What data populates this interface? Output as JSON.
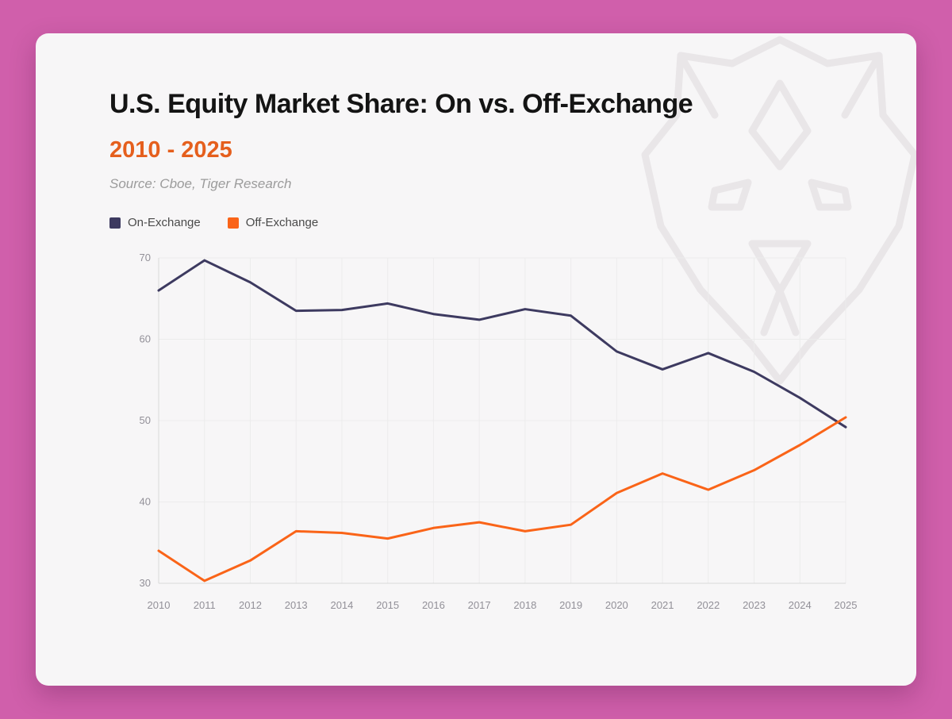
{
  "card": {
    "title": "U.S. Equity Market Share: On vs. Off-Exchange",
    "subtitle": "2010 - 2025",
    "source": "Source: Cboe, Tiger Research"
  },
  "colors": {
    "page_background": "#d05fab",
    "card_background": "#f7f6f7",
    "accent_orange": "#e55f1d",
    "on_exchange": "#3d3a60",
    "off_exchange": "#fa6418",
    "grid": "#ececec",
    "tick_text": "#929098"
  },
  "watermark": {
    "name": "tiger-logo",
    "color": "#e9e6e8"
  },
  "chart_data": {
    "type": "line",
    "title": "U.S. Equity Market Share: On vs. Off-Exchange",
    "subtitle": "2010 - 2025",
    "x": [
      2010,
      2011,
      2012,
      2013,
      2014,
      2015,
      2016,
      2017,
      2018,
      2019,
      2020,
      2021,
      2022,
      2023,
      2024,
      2025
    ],
    "series": [
      {
        "name": "On-Exchange",
        "color": "#3d3a60",
        "values": [
          66.0,
          69.7,
          67.0,
          63.5,
          63.6,
          64.4,
          63.1,
          62.4,
          63.7,
          62.9,
          58.5,
          56.3,
          58.3,
          56.0,
          52.8,
          49.2
        ]
      },
      {
        "name": "Off-Exchange",
        "color": "#fa6418",
        "values": [
          34.0,
          30.3,
          32.8,
          36.4,
          36.2,
          35.5,
          36.8,
          37.5,
          36.4,
          37.2,
          41.1,
          43.5,
          41.5,
          43.9,
          47.0,
          50.4
        ]
      }
    ],
    "xlabel": "",
    "ylabel": "",
    "ylim": [
      30,
      70
    ],
    "yticks": [
      30,
      40,
      50,
      60,
      70
    ],
    "grid": true,
    "legend_position": "top-left"
  }
}
